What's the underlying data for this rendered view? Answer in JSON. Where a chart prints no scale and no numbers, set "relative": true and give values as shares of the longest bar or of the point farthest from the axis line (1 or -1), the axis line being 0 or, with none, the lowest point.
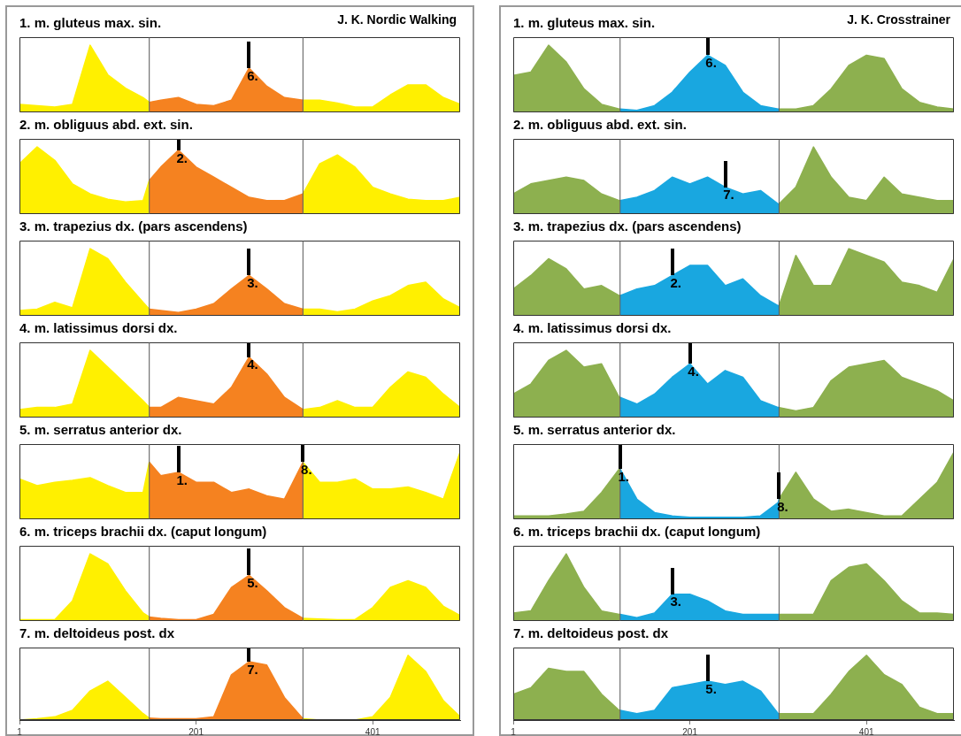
{
  "chart_data": [
    {
      "type": "area",
      "title": "1. m. gluteus max. sin.",
      "relative": true,
      "series": [
        {
          "color": "#fff000",
          "x": [
            1,
            21,
            41,
            61,
            81,
            101,
            121,
            141,
            148
          ],
          "values": [
            0.12,
            0.1,
            0.08,
            0.12,
            1,
            0.56,
            0.36,
            0.22,
            0.15
          ]
        },
        {
          "color": "#f58220",
          "x": [
            148,
            161,
            181,
            201,
            221,
            241,
            261,
            281,
            301,
            322
          ],
          "values": [
            0.15,
            0.18,
            0.22,
            0.12,
            0.1,
            0.18,
            0.66,
            0.39,
            0.22,
            0.18
          ]
        },
        {
          "color": "#fff000",
          "x": [
            322,
            341,
            361,
            381,
            401,
            421,
            441,
            461,
            481,
            500
          ],
          "values": [
            0.18,
            0.18,
            0.14,
            0.08,
            0.08,
            0.26,
            0.41,
            0.41,
            0.22,
            0.12
          ]
        }
      ],
      "xlim": [
        1,
        500
      ],
      "xticks": [
        1,
        201,
        401
      ],
      "tick_labels": false,
      "ref_lines": [
        {
          "axis": "x",
          "value": 148
        },
        {
          "axis": "x",
          "value": 322
        }
      ],
      "annotations": [
        "J. K. Nordic Walking",
        {
          "text": "6.",
          "x": 261,
          "y": 0.66
        }
      ]
    },
    {
      "type": "area",
      "title": "2. m. obliguus abd. ext. sin.",
      "relative": true,
      "series": [
        {
          "color": "#fff000",
          "x": [
            1,
            21,
            41,
            61,
            81,
            101,
            121,
            141,
            148
          ],
          "values": [
            0.75,
            1,
            0.8,
            0.45,
            0.3,
            0.22,
            0.18,
            0.2,
            0.5
          ]
        },
        {
          "color": "#f58220",
          "x": [
            148,
            161,
            181,
            201,
            221,
            241,
            261,
            281,
            301,
            322
          ],
          "values": [
            0.5,
            0.7,
            0.95,
            0.7,
            0.55,
            0.4,
            0.25,
            0.2,
            0.2,
            0.3
          ]
        },
        {
          "color": "#fff000",
          "x": [
            322,
            341,
            361,
            381,
            401,
            421,
            441,
            461,
            481,
            500
          ],
          "values": [
            0.3,
            0.75,
            0.88,
            0.7,
            0.4,
            0.3,
            0.22,
            0.2,
            0.2,
            0.25
          ]
        }
      ],
      "xlim": [
        1,
        500
      ],
      "xticks": [
        1,
        201,
        401
      ],
      "tick_labels": false,
      "ref_lines": [
        {
          "axis": "x",
          "value": 148
        },
        {
          "axis": "x",
          "value": 322
        }
      ],
      "annotations": [
        {
          "text": "2.",
          "x": 181,
          "y": 0.95
        }
      ]
    },
    {
      "type": "area",
      "title": "3. m. trapezius dx. (pars ascendens)",
      "relative": true,
      "series": [
        {
          "color": "#fff000",
          "x": [
            1,
            21,
            41,
            61,
            81,
            101,
            121,
            141,
            148
          ],
          "values": [
            0.08,
            0.1,
            0.2,
            0.12,
            1,
            0.85,
            0.5,
            0.2,
            0.1
          ]
        },
        {
          "color": "#f58220",
          "x": [
            148,
            161,
            181,
            201,
            221,
            241,
            261,
            281,
            301,
            322
          ],
          "values": [
            0.1,
            0.08,
            0.05,
            0.1,
            0.18,
            0.4,
            0.6,
            0.4,
            0.18,
            0.1
          ]
        },
        {
          "color": "#fff000",
          "x": [
            322,
            341,
            361,
            381,
            401,
            421,
            441,
            461,
            481,
            500
          ],
          "values": [
            0.1,
            0.1,
            0.06,
            0.1,
            0.22,
            0.3,
            0.45,
            0.5,
            0.25,
            0.12
          ]
        }
      ],
      "xlim": [
        1,
        500
      ],
      "xticks": [
        1,
        201,
        401
      ],
      "tick_labels": false,
      "ref_lines": [
        {
          "axis": "x",
          "value": 148
        },
        {
          "axis": "x",
          "value": 322
        }
      ],
      "annotations": [
        {
          "text": "3.",
          "x": 261,
          "y": 0.6
        }
      ]
    },
    {
      "type": "area",
      "title": "4. m. latissimus dorsi dx.",
      "relative": true,
      "series": [
        {
          "color": "#fff000",
          "x": [
            1,
            21,
            41,
            61,
            81,
            101,
            121,
            141,
            148
          ],
          "values": [
            0.12,
            0.15,
            0.15,
            0.2,
            1,
            0.75,
            0.5,
            0.25,
            0.15
          ]
        },
        {
          "color": "#f58220",
          "x": [
            148,
            161,
            181,
            201,
            221,
            241,
            261,
            281,
            301,
            322
          ],
          "values": [
            0.15,
            0.15,
            0.3,
            0.25,
            0.2,
            0.45,
            0.9,
            0.65,
            0.3,
            0.12
          ]
        },
        {
          "color": "#fff000",
          "x": [
            322,
            341,
            361,
            381,
            401,
            421,
            441,
            461,
            481,
            500
          ],
          "values": [
            0.12,
            0.15,
            0.25,
            0.15,
            0.15,
            0.45,
            0.68,
            0.6,
            0.35,
            0.15
          ]
        }
      ],
      "xlim": [
        1,
        500
      ],
      "xticks": [
        1,
        201,
        401
      ],
      "tick_labels": false,
      "ref_lines": [
        {
          "axis": "x",
          "value": 148
        },
        {
          "axis": "x",
          "value": 322
        }
      ],
      "annotations": [
        {
          "text": "4.",
          "x": 261,
          "y": 0.9
        }
      ]
    },
    {
      "type": "area",
      "title": "5. m. serratus anterior dx.",
      "relative": true,
      "series": [
        {
          "color": "#fff000",
          "x": [
            1,
            21,
            41,
            61,
            81,
            101,
            121,
            141,
            148
          ],
          "values": [
            0.6,
            0.5,
            0.55,
            0.58,
            0.62,
            0.5,
            0.4,
            0.4,
            0.85
          ]
        },
        {
          "color": "#f58220",
          "x": [
            148,
            161,
            181,
            201,
            221,
            241,
            261,
            281,
            301,
            322
          ],
          "values": [
            0.85,
            0.65,
            0.7,
            0.55,
            0.55,
            0.4,
            0.45,
            0.35,
            0.3,
            0.85
          ]
        },
        {
          "color": "#fff000",
          "x": [
            322,
            341,
            361,
            381,
            401,
            421,
            441,
            461,
            481,
            500
          ],
          "values": [
            0.85,
            0.55,
            0.55,
            0.6,
            0.45,
            0.45,
            0.48,
            0.4,
            0.3,
            1
          ]
        }
      ],
      "xlim": [
        1,
        500
      ],
      "xticks": [
        1,
        201,
        401
      ],
      "tick_labels": false,
      "ref_lines": [
        {
          "axis": "x",
          "value": 148
        },
        {
          "axis": "x",
          "value": 322
        }
      ],
      "annotations": [
        {
          "text": "1.",
          "x": 181,
          "y": 0.7
        },
        {
          "text": "8.",
          "x": 322,
          "y": 0.85
        }
      ]
    },
    {
      "type": "area",
      "title": "6. m. triceps brachii dx. (caput longum)",
      "relative": true,
      "series": [
        {
          "color": "#fff000",
          "x": [
            1,
            21,
            41,
            61,
            81,
            101,
            121,
            141,
            148
          ],
          "values": [
            0.02,
            0.02,
            0.02,
            0.3,
            1,
            0.85,
            0.45,
            0.12,
            0.06
          ]
        },
        {
          "color": "#f58220",
          "x": [
            148,
            161,
            181,
            201,
            221,
            241,
            261,
            281,
            301,
            322
          ],
          "values": [
            0.06,
            0.04,
            0.02,
            0.02,
            0.1,
            0.5,
            0.68,
            0.45,
            0.2,
            0.04
          ]
        },
        {
          "color": "#fff000",
          "x": [
            322,
            341,
            361,
            381,
            401,
            421,
            441,
            461,
            481,
            500
          ],
          "values": [
            0.04,
            0.03,
            0.02,
            0.02,
            0.2,
            0.5,
            0.6,
            0.5,
            0.22,
            0.08
          ]
        }
      ],
      "xlim": [
        1,
        500
      ],
      "xticks": [
        1,
        201,
        401
      ],
      "tick_labels": false,
      "ref_lines": [
        {
          "axis": "x",
          "value": 148
        },
        {
          "axis": "x",
          "value": 322
        }
      ],
      "annotations": [
        {
          "text": "5.",
          "x": 261,
          "y": 0.68
        }
      ]
    },
    {
      "type": "area",
      "title": "7. m. deltoideus post. dx",
      "relative": true,
      "series": [
        {
          "color": "#fff000",
          "x": [
            1,
            21,
            41,
            61,
            81,
            101,
            121,
            141,
            148
          ],
          "values": [
            0,
            0.02,
            0.05,
            0.15,
            0.45,
            0.6,
            0.35,
            0.1,
            0.03
          ]
        },
        {
          "color": "#f58220",
          "x": [
            148,
            161,
            181,
            201,
            221,
            241,
            261,
            281,
            301,
            322
          ],
          "values": [
            0.03,
            0.02,
            0.02,
            0.02,
            0.05,
            0.7,
            0.9,
            0.85,
            0.35,
            0.02
          ]
        },
        {
          "color": "#fff000",
          "x": [
            322,
            341,
            361,
            381,
            401,
            421,
            441,
            461,
            481,
            500
          ],
          "values": [
            0.02,
            0,
            0,
            0,
            0.05,
            0.35,
            1,
            0.75,
            0.3,
            0.05
          ]
        }
      ],
      "xlim": [
        1,
        500
      ],
      "xticks": [
        1,
        201,
        401
      ],
      "tick_labels": "x",
      "ref_lines": [
        {
          "axis": "x",
          "value": 148
        },
        {
          "axis": "x",
          "value": 322
        }
      ],
      "annotations": [
        {
          "text": "7.",
          "x": 261,
          "y": 0.9
        }
      ]
    },
    {
      "type": "area",
      "title": "1. m. gluteus max. sin.",
      "relative": true,
      "series": [
        {
          "color": "#8db04f",
          "x": [
            1,
            21,
            41,
            61,
            81,
            101,
            121,
            122
          ],
          "values": [
            0.55,
            0.6,
            1,
            0.75,
            0.35,
            0.12,
            0.05,
            0.05
          ]
        },
        {
          "color": "#19a7e0",
          "x": [
            122,
            141,
            161,
            181,
            201,
            221,
            241,
            261,
            281,
            301,
            302
          ],
          "values": [
            0.05,
            0.03,
            0.1,
            0.3,
            0.6,
            0.85,
            0.7,
            0.3,
            0.1,
            0.05,
            0.05
          ]
        },
        {
          "color": "#8db04f",
          "x": [
            302,
            321,
            341,
            361,
            381,
            401,
            421,
            441,
            461,
            481,
            500
          ],
          "values": [
            0.05,
            0.05,
            0.1,
            0.35,
            0.7,
            0.85,
            0.8,
            0.35,
            0.15,
            0.08,
            0.05
          ]
        }
      ],
      "xlim": [
        1,
        500
      ],
      "xticks": [
        1,
        201,
        401
      ],
      "tick_labels": false,
      "ref_lines": [
        {
          "axis": "x",
          "value": 122
        },
        {
          "axis": "x",
          "value": 302
        }
      ],
      "annotations": [
        "J. K. Crosstrainer",
        {
          "text": "6.",
          "x": 221,
          "y": 0.85
        }
      ]
    },
    {
      "type": "area",
      "title": "2. m. obliguus abd. ext. sin.",
      "relative": true,
      "series": [
        {
          "color": "#8db04f",
          "x": [
            1,
            21,
            41,
            61,
            81,
            101,
            121,
            122
          ],
          "values": [
            0.3,
            0.45,
            0.5,
            0.55,
            0.5,
            0.3,
            0.2,
            0.2
          ]
        },
        {
          "color": "#19a7e0",
          "x": [
            122,
            141,
            161,
            181,
            201,
            221,
            241,
            261,
            281,
            301,
            302
          ],
          "values": [
            0.2,
            0.25,
            0.35,
            0.55,
            0.45,
            0.55,
            0.4,
            0.3,
            0.35,
            0.15,
            0.15
          ]
        },
        {
          "color": "#8db04f",
          "x": [
            302,
            321,
            341,
            361,
            381,
            401,
            421,
            441,
            461,
            481,
            500
          ],
          "values": [
            0.15,
            0.4,
            1,
            0.55,
            0.25,
            0.2,
            0.55,
            0.3,
            0.25,
            0.2,
            0.2
          ]
        }
      ],
      "xlim": [
        1,
        500
      ],
      "xticks": [
        1,
        201,
        401
      ],
      "tick_labels": false,
      "ref_lines": [
        {
          "axis": "x",
          "value": 122
        },
        {
          "axis": "x",
          "value": 302
        }
      ],
      "annotations": [
        {
          "text": "7.",
          "x": 241,
          "y": 0.4
        }
      ]
    },
    {
      "type": "area",
      "title": "3. m. trapezius dx. (pars ascendens)",
      "relative": true,
      "series": [
        {
          "color": "#8db04f",
          "x": [
            1,
            21,
            41,
            61,
            81,
            101,
            121,
            122
          ],
          "values": [
            0.4,
            0.6,
            0.85,
            0.7,
            0.4,
            0.45,
            0.3,
            0.3
          ]
        },
        {
          "color": "#19a7e0",
          "x": [
            122,
            141,
            161,
            181,
            201,
            221,
            241,
            261,
            281,
            301,
            302
          ],
          "values": [
            0.3,
            0.4,
            0.45,
            0.6,
            0.75,
            0.75,
            0.45,
            0.55,
            0.3,
            0.15,
            0.15
          ]
        },
        {
          "color": "#8db04f",
          "x": [
            302,
            321,
            341,
            361,
            381,
            401,
            421,
            441,
            461,
            481,
            500
          ],
          "values": [
            0.15,
            0.9,
            0.45,
            0.45,
            1,
            0.9,
            0.8,
            0.5,
            0.45,
            0.35,
            0.85
          ]
        }
      ],
      "xlim": [
        1,
        500
      ],
      "xticks": [
        1,
        201,
        401
      ],
      "tick_labels": false,
      "ref_lines": [
        {
          "axis": "x",
          "value": 122
        },
        {
          "axis": "x",
          "value": 302
        }
      ],
      "annotations": [
        {
          "text": "2.",
          "x": 181,
          "y": 0.6
        }
      ]
    },
    {
      "type": "area",
      "title": "4. m. latissimus dorsi dx.",
      "relative": true,
      "series": [
        {
          "color": "#8db04f",
          "x": [
            1,
            21,
            41,
            61,
            81,
            101,
            121,
            122
          ],
          "values": [
            0.35,
            0.5,
            0.85,
            1,
            0.75,
            0.8,
            0.3,
            0.3
          ]
        },
        {
          "color": "#19a7e0",
          "x": [
            122,
            141,
            161,
            181,
            201,
            221,
            241,
            261,
            281,
            301,
            302
          ],
          "values": [
            0.3,
            0.2,
            0.35,
            0.6,
            0.8,
            0.5,
            0.7,
            0.6,
            0.25,
            0.15,
            0.15
          ]
        },
        {
          "color": "#8db04f",
          "x": [
            302,
            321,
            341,
            361,
            381,
            401,
            421,
            441,
            461,
            481,
            500
          ],
          "values": [
            0.15,
            0.1,
            0.15,
            0.55,
            0.75,
            0.8,
            0.85,
            0.6,
            0.5,
            0.4,
            0.25
          ]
        }
      ],
      "xlim": [
        1,
        500
      ],
      "xticks": [
        1,
        201,
        401
      ],
      "tick_labels": false,
      "ref_lines": [
        {
          "axis": "x",
          "value": 122
        },
        {
          "axis": "x",
          "value": 302
        }
      ],
      "annotations": [
        {
          "text": "4.",
          "x": 201,
          "y": 0.8
        }
      ]
    },
    {
      "type": "area",
      "title": "5. m. serratus anterior dx.",
      "relative": true,
      "series": [
        {
          "color": "#8db04f",
          "x": [
            1,
            21,
            41,
            61,
            81,
            101,
            121,
            122
          ],
          "values": [
            0.05,
            0.05,
            0.05,
            0.08,
            0.12,
            0.4,
            0.75,
            0.75
          ]
        },
        {
          "color": "#19a7e0",
          "x": [
            122,
            141,
            161,
            181,
            201,
            221,
            241,
            261,
            281,
            301,
            302
          ],
          "values": [
            0.75,
            0.3,
            0.1,
            0.05,
            0.03,
            0.03,
            0.03,
            0.03,
            0.05,
            0.25,
            0.3
          ]
        },
        {
          "color": "#8db04f",
          "x": [
            302,
            321,
            341,
            361,
            381,
            401,
            421,
            441,
            461,
            481,
            500
          ],
          "values": [
            0.3,
            0.7,
            0.3,
            0.12,
            0.15,
            0.1,
            0.05,
            0.05,
            0.3,
            0.55,
            1
          ]
        }
      ],
      "xlim": [
        1,
        500
      ],
      "xticks": [
        1,
        201,
        401
      ],
      "tick_labels": false,
      "ref_lines": [
        {
          "axis": "x",
          "value": 122
        },
        {
          "axis": "x",
          "value": 302
        }
      ],
      "annotations": [
        {
          "text": "1.",
          "x": 122,
          "y": 0.75
        },
        {
          "text": "8.",
          "x": 302,
          "y": 0.3
        }
      ]
    },
    {
      "type": "area",
      "title": "6. m. triceps brachii dx. (caput longum)",
      "relative": true,
      "series": [
        {
          "color": "#8db04f",
          "x": [
            1,
            21,
            41,
            61,
            81,
            101,
            121,
            122
          ],
          "values": [
            0.12,
            0.15,
            0.6,
            1,
            0.5,
            0.15,
            0.1,
            0.1
          ]
        },
        {
          "color": "#19a7e0",
          "x": [
            122,
            141,
            161,
            181,
            201,
            221,
            241,
            261,
            281,
            301,
            302
          ],
          "values": [
            0.1,
            0.05,
            0.12,
            0.4,
            0.4,
            0.3,
            0.15,
            0.1,
            0.1,
            0.1,
            0.1
          ]
        },
        {
          "color": "#8db04f",
          "x": [
            302,
            321,
            341,
            361,
            381,
            401,
            421,
            441,
            461,
            481,
            500
          ],
          "values": [
            0.1,
            0.1,
            0.1,
            0.6,
            0.8,
            0.85,
            0.6,
            0.3,
            0.12,
            0.12,
            0.1
          ]
        }
      ],
      "xlim": [
        1,
        500
      ],
      "xticks": [
        1,
        201,
        401
      ],
      "tick_labels": false,
      "ref_lines": [
        {
          "axis": "x",
          "value": 122
        },
        {
          "axis": "x",
          "value": 302
        }
      ],
      "annotations": [
        {
          "text": "3.",
          "x": 181,
          "y": 0.4
        }
      ]
    },
    {
      "type": "area",
      "title": "7. m. deltoideus post. dx",
      "relative": true,
      "series": [
        {
          "color": "#8db04f",
          "x": [
            1,
            21,
            41,
            61,
            81,
            101,
            121,
            122
          ],
          "values": [
            0.4,
            0.5,
            0.8,
            0.75,
            0.75,
            0.4,
            0.15,
            0.15
          ]
        },
        {
          "color": "#19a7e0",
          "x": [
            122,
            141,
            161,
            181,
            201,
            221,
            241,
            261,
            281,
            301,
            302
          ],
          "values": [
            0.15,
            0.1,
            0.15,
            0.5,
            0.55,
            0.6,
            0.55,
            0.6,
            0.45,
            0.1,
            0.1
          ]
        },
        {
          "color": "#8db04f",
          "x": [
            302,
            321,
            341,
            361,
            381,
            401,
            421,
            441,
            461,
            481,
            500
          ],
          "values": [
            0.1,
            0.1,
            0.1,
            0.4,
            0.75,
            1,
            0.7,
            0.55,
            0.2,
            0.1,
            0.1
          ]
        }
      ],
      "xlim": [
        1,
        500
      ],
      "xticks": [
        1,
        201,
        401
      ],
      "tick_labels": "x",
      "ref_lines": [
        {
          "axis": "x",
          "value": 122
        },
        {
          "axis": "x",
          "value": 302
        }
      ],
      "annotations": [
        {
          "text": "5.",
          "x": 221,
          "y": 0.6
        }
      ]
    }
  ]
}
